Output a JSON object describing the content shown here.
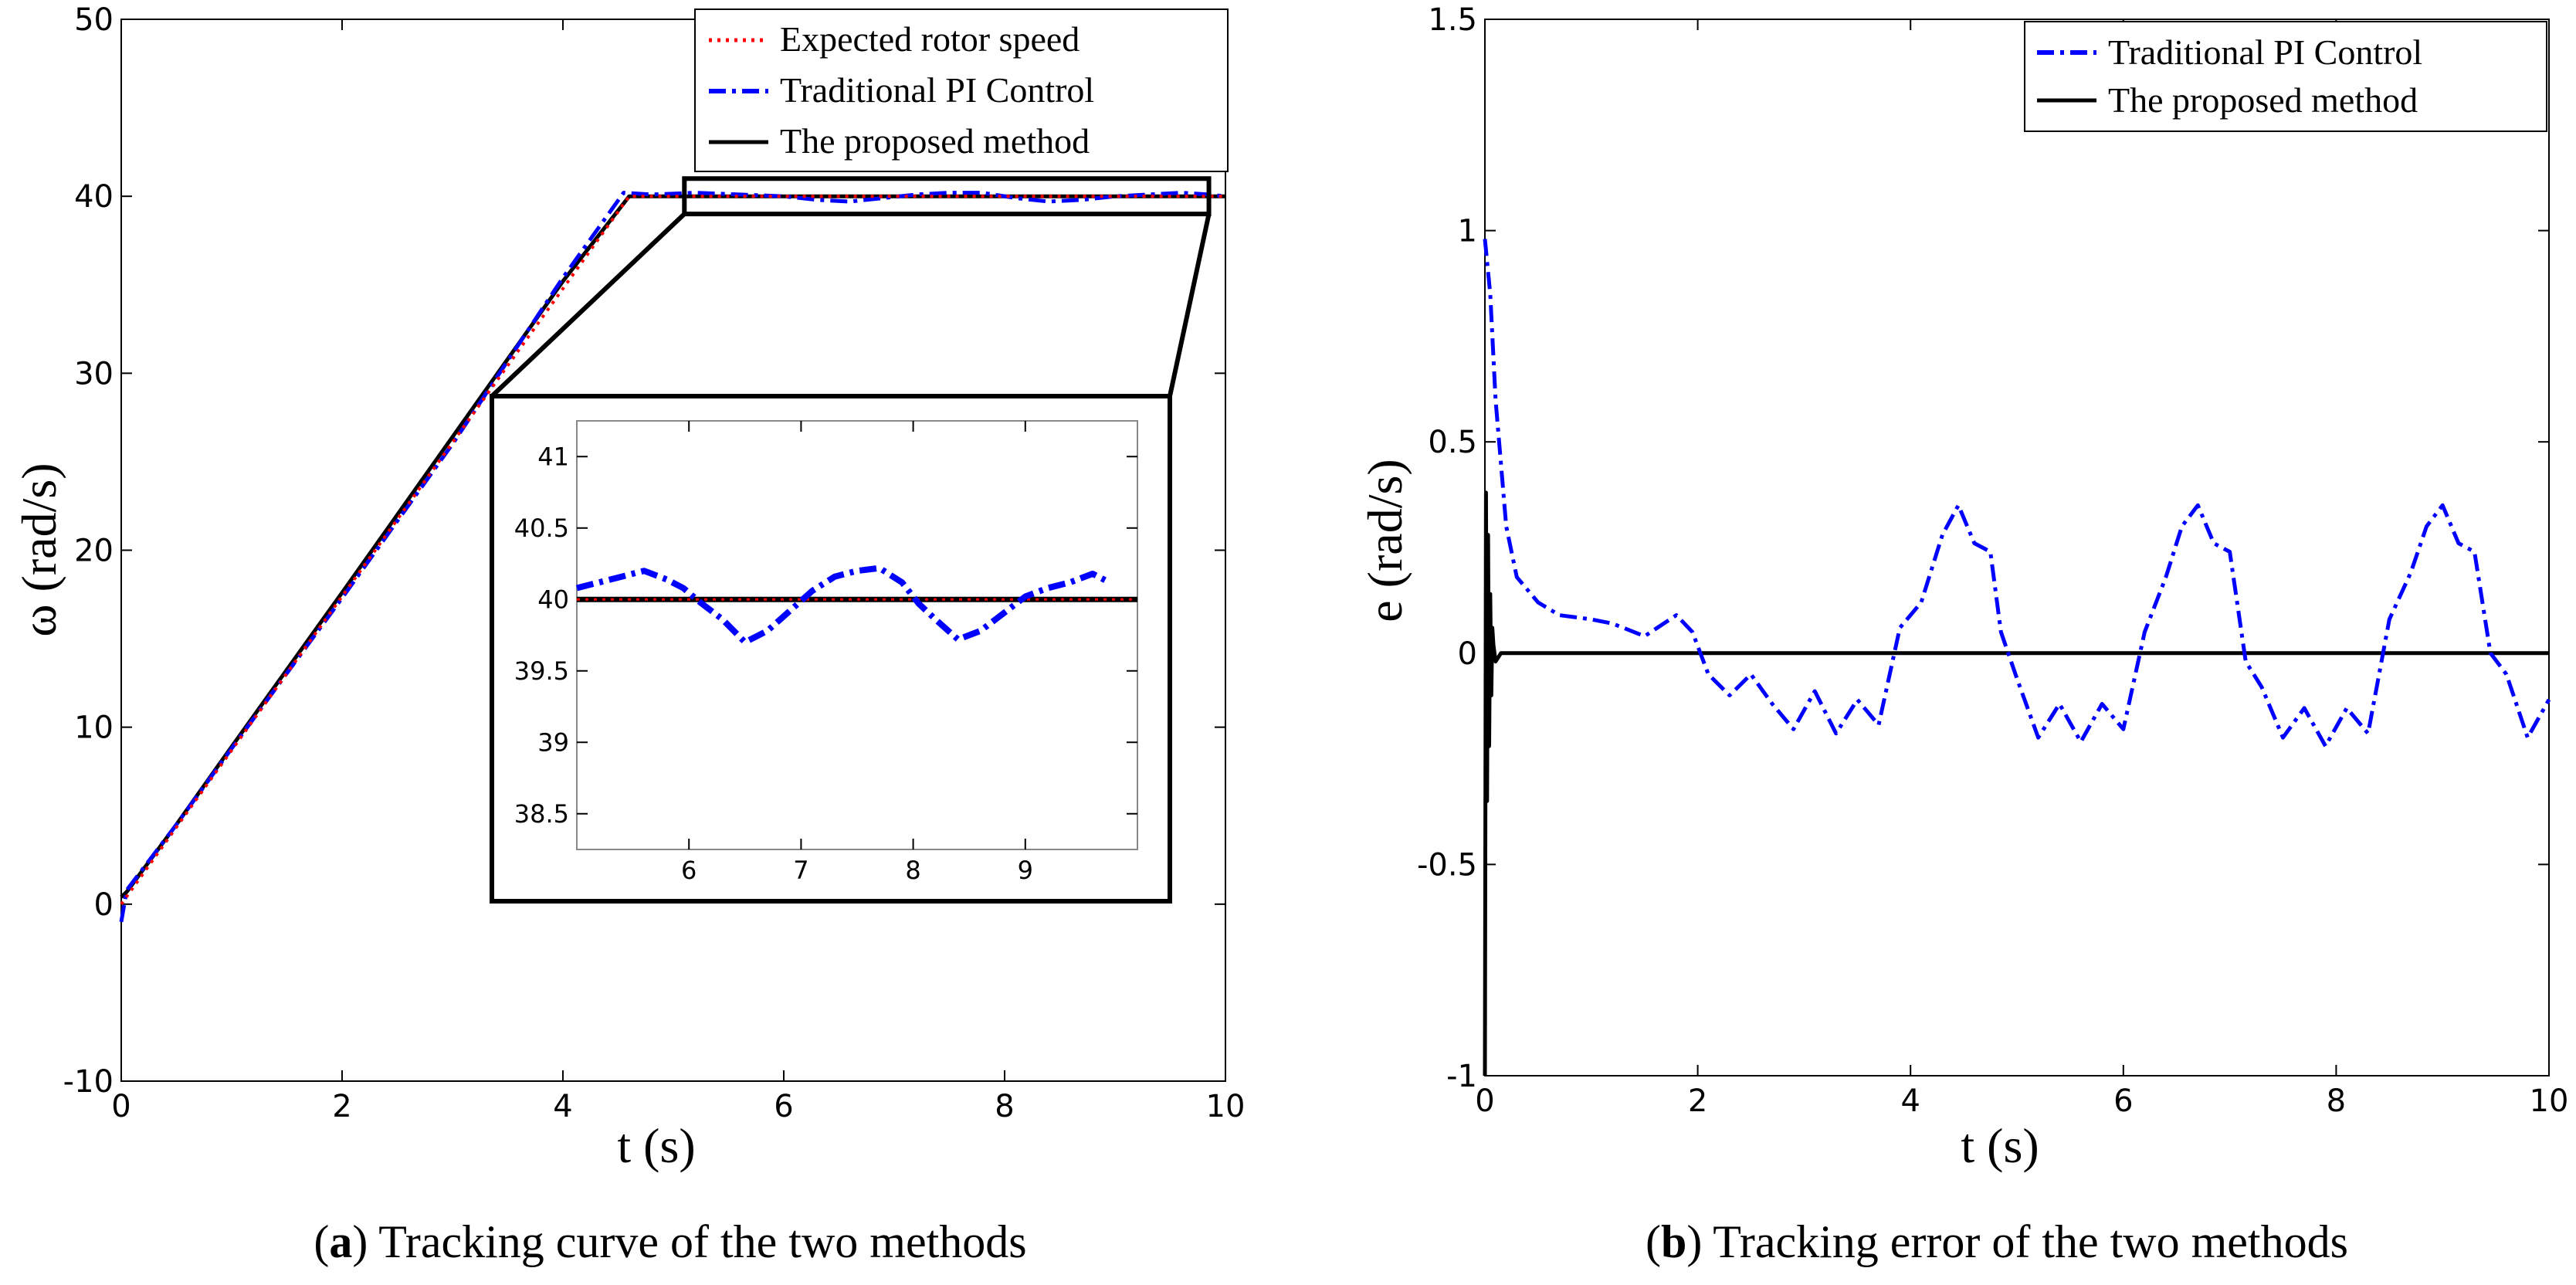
{
  "figure_caption_a": {
    "letter": "a",
    "text": " Tracking curve of the two methods"
  },
  "figure_caption_b": {
    "letter": "b",
    "text": " Tracking error of the two methods"
  },
  "chart_data": [
    {
      "id": "a",
      "type": "line",
      "title": "",
      "xlabel": "t (s)",
      "ylabel": "ω (rad/s)",
      "xlim": [
        0,
        10
      ],
      "ylim": [
        -10,
        50
      ],
      "xticks": [
        0,
        2,
        4,
        6,
        8,
        10
      ],
      "yticks": [
        -10,
        0,
        10,
        20,
        30,
        40,
        50
      ],
      "xtick_labels": [
        "0",
        "2",
        "4",
        "6",
        "8",
        "10"
      ],
      "ytick_labels": [
        "-10",
        "0",
        "10",
        "20",
        "30",
        "40",
        "50"
      ],
      "grid": false,
      "legend_position": "top-right",
      "series": [
        {
          "name": "Expected rotor speed",
          "color": "#ff0000",
          "style": "dotted",
          "x": [
            0,
            4.6,
            10
          ],
          "y": [
            0,
            40,
            40
          ]
        },
        {
          "name": "Traditional PI Control",
          "color": "#0000ff",
          "style": "dashdot",
          "x": [
            0,
            0.05,
            0.5,
            1,
            2,
            3,
            4,
            4.55,
            4.8,
            5.2,
            5.6,
            6.0,
            6.3,
            6.6,
            6.9,
            7.2,
            7.5,
            7.8,
            8.1,
            8.4,
            8.7,
            9.0,
            9.3,
            9.6,
            9.85,
            10
          ],
          "y": [
            -1,
            0.8,
            4.5,
            8.8,
            17.3,
            26.0,
            35.4,
            40.2,
            40.1,
            40.2,
            40.1,
            40.0,
            39.8,
            39.7,
            39.9,
            40.1,
            40.2,
            40.2,
            39.9,
            39.7,
            39.8,
            40.0,
            40.1,
            40.2,
            40.1,
            40.0
          ]
        },
        {
          "name": "The proposed method",
          "color": "#000000",
          "style": "solid",
          "x": [
            0,
            0.05,
            0.5,
            1,
            2,
            3,
            4,
            4.6,
            10
          ],
          "y": [
            0.4,
            0.7,
            4.5,
            8.9,
            17.6,
            26.4,
            35.2,
            40.0,
            40.0
          ]
        }
      ],
      "inset": {
        "xlim": [
          5.0,
          10.0
        ],
        "ylim": [
          38.25,
          41.25
        ],
        "xticks": [
          6,
          7,
          8,
          9
        ],
        "yticks": [
          38.5,
          39,
          39.5,
          40,
          40.5,
          41
        ],
        "xtick_labels": [
          "6",
          "7",
          "8",
          "9"
        ],
        "ytick_labels": [
          "38.5",
          "39",
          "39.5",
          "40",
          "40.5",
          "41"
        ],
        "zoom_region": {
          "x": [
            5.1,
            9.85
          ],
          "y": [
            39.0,
            41.0
          ]
        },
        "pi_x": [
          5.0,
          5.2,
          5.4,
          5.6,
          5.8,
          5.95,
          6.1,
          6.3,
          6.5,
          6.7,
          6.9,
          7.1,
          7.3,
          7.5,
          7.7,
          7.9,
          8.05,
          8.2,
          8.4,
          8.6,
          8.8,
          9.0,
          9.2,
          9.4,
          9.6,
          9.75
        ],
        "pi_y": [
          40.08,
          40.12,
          40.16,
          40.2,
          40.14,
          40.08,
          39.98,
          39.86,
          39.7,
          39.78,
          39.92,
          40.06,
          40.16,
          40.2,
          40.22,
          40.12,
          39.97,
          39.86,
          39.72,
          39.78,
          39.9,
          40.02,
          40.08,
          40.12,
          40.18,
          40.12
        ],
        "proposed_y": 40.0,
        "expected_y": 40.0
      }
    },
    {
      "id": "b",
      "type": "line",
      "title": "",
      "xlabel": "t (s)",
      "ylabel": "e (rad/s)",
      "xlim": [
        0,
        10
      ],
      "ylim": [
        -1,
        1.5
      ],
      "xticks": [
        0,
        2,
        4,
        6,
        8,
        10
      ],
      "yticks": [
        -1,
        -0.5,
        0,
        0.5,
        1,
        1.5
      ],
      "xtick_labels": [
        "0",
        "2",
        "4",
        "6",
        "8",
        "10"
      ],
      "ytick_labels": [
        "-1",
        "-0.5",
        "0",
        "0.5",
        "1",
        "1.5"
      ],
      "grid": false,
      "legend_position": "top-right",
      "series": [
        {
          "name": "Traditional PI Control",
          "color": "#0000ff",
          "style": "dashdot",
          "x": [
            0,
            0.05,
            0.1,
            0.2,
            0.3,
            0.5,
            0.7,
            1.0,
            1.2,
            1.5,
            1.8,
            1.95,
            2.1,
            2.3,
            2.5,
            2.7,
            2.9,
            3.1,
            3.3,
            3.5,
            3.7,
            3.9,
            4.1,
            4.3,
            4.45,
            4.6,
            4.75,
            4.85,
            5.0,
            5.2,
            5.4,
            5.6,
            5.8,
            6.0,
            6.2,
            6.4,
            6.55,
            6.7,
            6.85,
            7.0,
            7.15,
            7.3,
            7.5,
            7.7,
            7.9,
            8.1,
            8.3,
            8.5,
            8.7,
            8.85,
            9.0,
            9.15,
            9.3,
            9.45,
            9.6,
            9.8,
            10.0
          ],
          "y": [
            0.98,
            0.85,
            0.6,
            0.3,
            0.18,
            0.12,
            0.09,
            0.08,
            0.07,
            0.04,
            0.09,
            0.05,
            -0.05,
            -0.1,
            -0.05,
            -0.12,
            -0.18,
            -0.09,
            -0.19,
            -0.11,
            -0.17,
            0.06,
            0.12,
            0.28,
            0.35,
            0.26,
            0.24,
            0.05,
            -0.06,
            -0.2,
            -0.12,
            -0.21,
            -0.12,
            -0.18,
            0.05,
            0.18,
            0.3,
            0.35,
            0.26,
            0.24,
            -0.02,
            -0.08,
            -0.2,
            -0.13,
            -0.22,
            -0.13,
            -0.19,
            0.08,
            0.19,
            0.3,
            0.35,
            0.26,
            0.24,
            0.0,
            -0.05,
            -0.2,
            -0.11
          ]
        },
        {
          "name": "The proposed method",
          "color": "#000000",
          "style": "solid",
          "x": [
            0,
            0.01,
            0.02,
            0.03,
            0.04,
            0.05,
            0.06,
            0.07,
            0.08,
            0.1,
            0.15,
            1.0,
            4.5,
            10.0
          ],
          "y": [
            -1.0,
            0.38,
            -0.35,
            0.28,
            -0.22,
            0.14,
            -0.1,
            0.06,
            0.02,
            -0.02,
            0.0,
            0.0,
            0.0,
            0.0
          ]
        }
      ]
    }
  ]
}
